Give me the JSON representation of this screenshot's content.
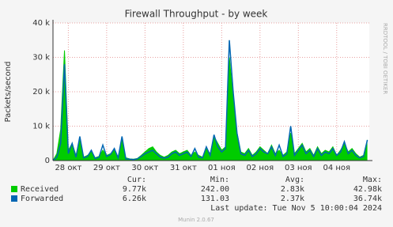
{
  "chart_data": {
    "type": "area",
    "title": "Firewall Throughput - by week",
    "ylabel": "Packets/second",
    "side_label": "RRDTOOL / TOBI OETIKER",
    "x": [
      -0.4,
      -0.3,
      -0.2,
      -0.1,
      0.0,
      0.1,
      0.2,
      0.3,
      0.4,
      0.5,
      0.6,
      0.7,
      0.8,
      0.9,
      1.0,
      1.1,
      1.2,
      1.3,
      1.4,
      1.5,
      1.6,
      1.7,
      1.8,
      1.9,
      2.0,
      2.1,
      2.2,
      2.3,
      2.4,
      2.5,
      2.6,
      2.7,
      2.8,
      2.9,
      3.0,
      3.1,
      3.2,
      3.3,
      3.4,
      3.5,
      3.6,
      3.7,
      3.8,
      3.9,
      4.0,
      4.1,
      4.2,
      4.3,
      4.4,
      4.5,
      4.6,
      4.7,
      4.8,
      4.9,
      5.0,
      5.1,
      5.2,
      5.3,
      5.4,
      5.5,
      5.6,
      5.7,
      5.8,
      5.9,
      6.0,
      6.1,
      6.2,
      6.3,
      6.4,
      6.5,
      6.6,
      6.7,
      6.8,
      6.9,
      7.0,
      7.1,
      7.2,
      7.3,
      7.4,
      7.5,
      7.6,
      7.7,
      7.8
    ],
    "xlim": [
      -0.4,
      7.85
    ],
    "xticks": [
      {
        "value": 0,
        "label": "28 окт"
      },
      {
        "value": 1,
        "label": "29 окт"
      },
      {
        "value": 2,
        "label": "30 окт"
      },
      {
        "value": 3,
        "label": "31 окт"
      },
      {
        "value": 4,
        "label": "01 ноя"
      },
      {
        "value": 5,
        "label": "02 ноя"
      },
      {
        "value": 6,
        "label": "03 ноя"
      },
      {
        "value": 7,
        "label": "04 ноя"
      }
    ],
    "ylim": [
      0,
      40000
    ],
    "yticks": [
      0,
      {
        "value": 10000,
        "label": "10 k"
      },
      {
        "value": 20000,
        "label": "20 k"
      },
      {
        "value": 30000,
        "label": "30 k"
      },
      {
        "value": 40000,
        "label": "40 k"
      }
    ],
    "grid": true,
    "series": [
      {
        "name": "Received",
        "color": "#00cc00",
        "style": "area",
        "values": [
          0,
          2000,
          9000,
          32000,
          3000,
          5000,
          1500,
          6000,
          1000,
          1500,
          2500,
          800,
          1200,
          3000,
          1500,
          2000,
          3000,
          1000,
          6000,
          800,
          500,
          400,
          600,
          1500,
          2500,
          3500,
          4000,
          2500,
          1500,
          1000,
          1500,
          2500,
          3000,
          2000,
          2500,
          3000,
          1500,
          2500,
          1500,
          1000,
          3500,
          2000,
          7000,
          5000,
          3000,
          4000,
          30000,
          18000,
          8000,
          2500,
          2000,
          3500,
          1500,
          2500,
          4000,
          3000,
          2000,
          4500,
          2000,
          3000,
          1500,
          2500,
          8000,
          2000,
          3500,
          5000,
          2500,
          3500,
          1500,
          4000,
          2000,
          3000,
          2500,
          4000,
          1500,
          3000,
          5000,
          2500,
          3500,
          2000,
          1000,
          1500,
          6000
        ]
      },
      {
        "name": "Forwarded",
        "color": "#0066b3",
        "style": "line",
        "values": [
          0,
          1000,
          5000,
          28000,
          2000,
          5000,
          1000,
          7000,
          800,
          1200,
          3000,
          600,
          1000,
          4500,
          1200,
          1800,
          3500,
          800,
          7000,
          500,
          400,
          300,
          500,
          1200,
          2000,
          2500,
          3000,
          2000,
          1000,
          700,
          1000,
          2000,
          2500,
          1500,
          2000,
          2500,
          1200,
          3500,
          1000,
          800,
          4000,
          1500,
          7500,
          4000,
          2500,
          3500,
          35000,
          20000,
          8000,
          2000,
          1500,
          3000,
          1200,
          2000,
          3500,
          2500,
          2000,
          4000,
          1500,
          4500,
          1200,
          2000,
          10000,
          1500,
          3000,
          4500,
          2000,
          3000,
          1200,
          3500,
          1500,
          2500,
          2000,
          3500,
          1500,
          2500,
          5500,
          2000,
          3000,
          1500,
          800,
          1200,
          6000
        ]
      }
    ],
    "legend_stats": {
      "headers": [
        "Cur:",
        "Min:",
        "Avg:",
        "Max:"
      ],
      "rows": [
        [
          "9.77k",
          "242.00",
          "2.83k",
          "42.98k"
        ],
        [
          "6.26k",
          "131.03",
          "2.37k",
          "36.74k"
        ]
      ]
    },
    "last_update": "Last update: Tue Nov  5 10:00:04 2024",
    "footer": "Munin 2.0.67"
  }
}
